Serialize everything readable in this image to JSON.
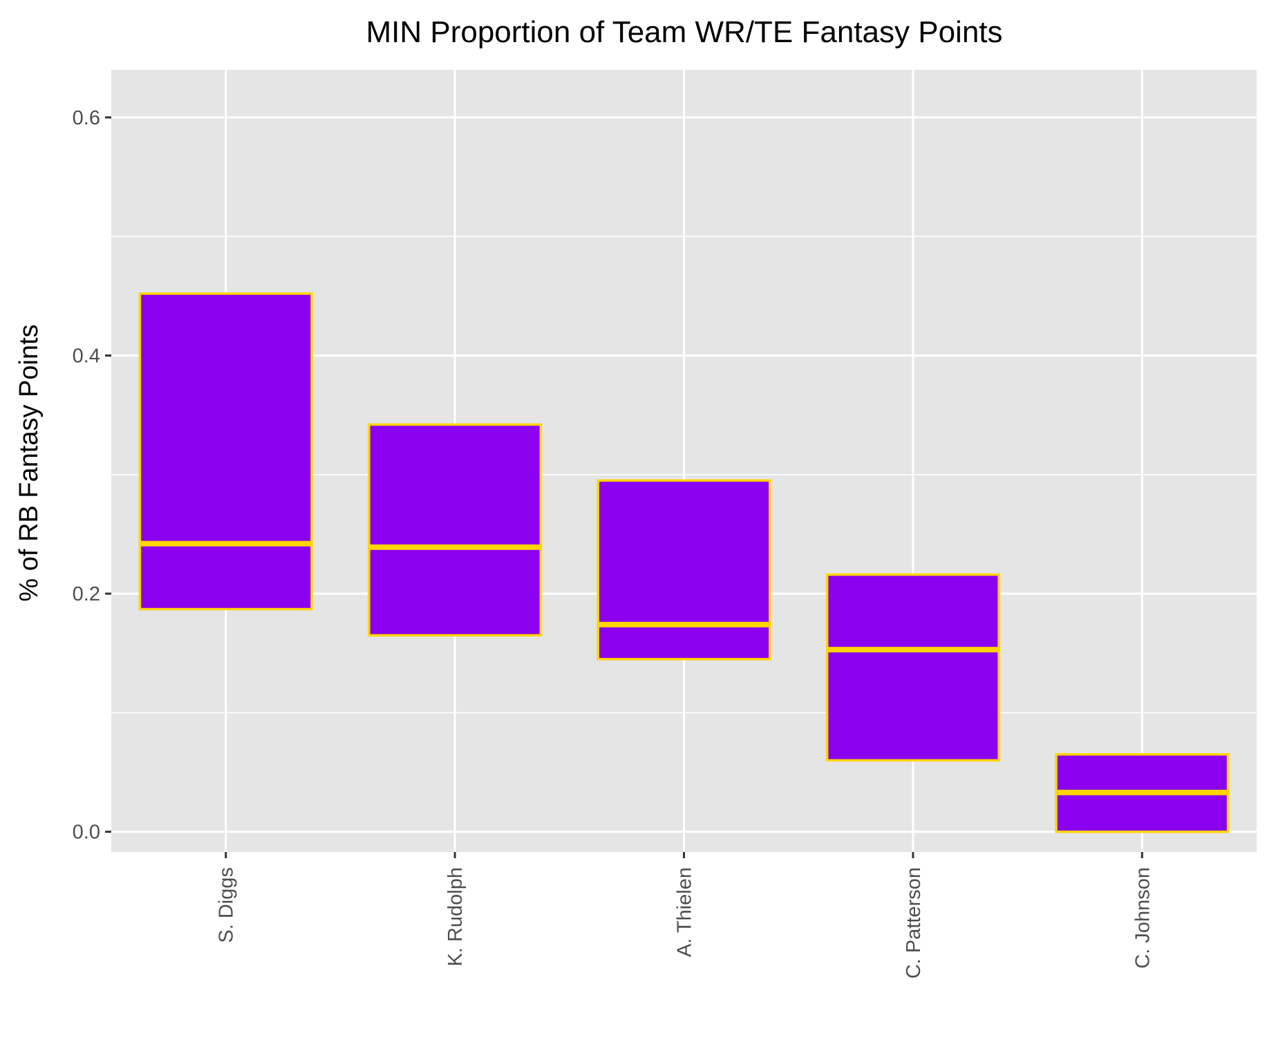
{
  "chart_data": {
    "type": "boxplot",
    "title": "MIN Proportion of Team WR/TE Fantasy Points",
    "xlabel": "",
    "ylabel": "% of RB Fantasy Points",
    "ylim": [
      -0.017,
      0.64
    ],
    "yticks": [
      0.0,
      0.2,
      0.4,
      0.6
    ],
    "ytick_labels": [
      "0.0",
      "0.2",
      "0.4",
      "0.6"
    ],
    "categories": [
      "S. Diggs",
      "K. Rudolph",
      "A. Thielen",
      "C. Patterson",
      "C. Johnson"
    ],
    "boxes": [
      {
        "category": "S. Diggs",
        "q1": 0.187,
        "median": 0.242,
        "q3": 0.452
      },
      {
        "category": "K. Rudolph",
        "q1": 0.165,
        "median": 0.239,
        "q3": 0.342
      },
      {
        "category": "A. Thielen",
        "q1": 0.145,
        "median": 0.174,
        "q3": 0.295
      },
      {
        "category": "C. Patterson",
        "q1": 0.06,
        "median": 0.153,
        "q3": 0.216
      },
      {
        "category": "C. Johnson",
        "q1": 0.0,
        "median": 0.033,
        "q3": 0.065
      }
    ],
    "grid": true,
    "legend": "none",
    "colors": {
      "box_fill": "#8B00EE",
      "box_outline": "#FFD500",
      "panel_background": "#E5E5E5",
      "grid": "#FFFFFF"
    }
  }
}
